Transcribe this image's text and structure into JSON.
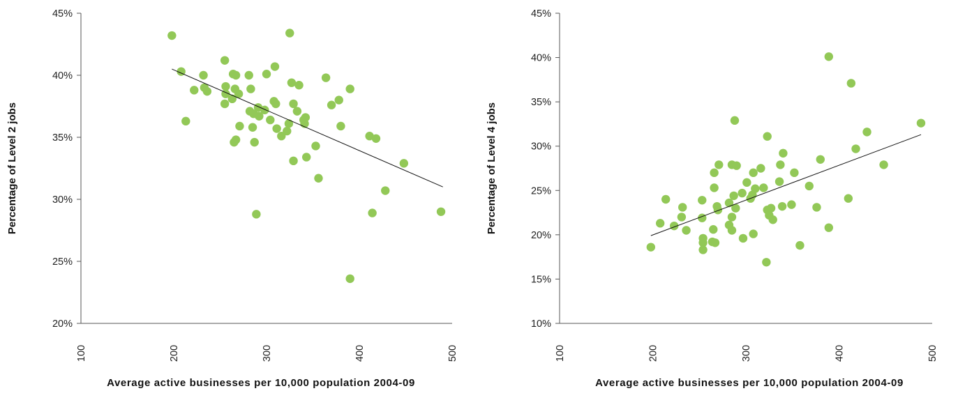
{
  "chart_data": [
    {
      "type": "scatter",
      "title": "",
      "xlabel": "Average active businesses per 10,000 population 2004-09",
      "ylabel": "Percentage of Level 2 jobs",
      "xlim": [
        100,
        500
      ],
      "ylim": [
        20,
        45
      ],
      "x_ticks": [
        "100",
        "200",
        "300",
        "400",
        "500"
      ],
      "y_ticks": [
        "20%",
        "25%",
        "30%",
        "35%",
        "40%",
        "45%"
      ],
      "grid": false,
      "legend": "none",
      "point_color": "#92c857",
      "trendline": {
        "x": [
          198,
          490
        ],
        "y": [
          40.5,
          31.0
        ]
      },
      "series": [
        {
          "points": [
            [
              198,
              43.2
            ],
            [
              208,
              40.3
            ],
            [
              213,
              36.3
            ],
            [
              222,
              38.8
            ],
            [
              232,
              40.0
            ],
            [
              233,
              39.0
            ],
            [
              236,
              38.7
            ],
            [
              255,
              41.2
            ],
            [
              256,
              39.1
            ],
            [
              256,
              38.5
            ],
            [
              255,
              37.7
            ],
            [
              263,
              38.1
            ],
            [
              264,
              40.1
            ],
            [
              267,
              40.0
            ],
            [
              266,
              38.9
            ],
            [
              270,
              38.5
            ],
            [
              267,
              34.8
            ],
            [
              265,
              34.6
            ],
            [
              271,
              35.9
            ],
            [
              281,
              40.0
            ],
            [
              283,
              38.9
            ],
            [
              282,
              37.1
            ],
            [
              286,
              36.9
            ],
            [
              285,
              35.8
            ],
            [
              287,
              34.6
            ],
            [
              291,
              37.4
            ],
            [
              292,
              36.7
            ],
            [
              298,
              37.2
            ],
            [
              300,
              40.1
            ],
            [
              304,
              36.4
            ],
            [
              308,
              37.9
            ],
            [
              310,
              37.7
            ],
            [
              309,
              40.7
            ],
            [
              311,
              35.7
            ],
            [
              316,
              35.1
            ],
            [
              322,
              35.5
            ],
            [
              324,
              36.1
            ],
            [
              325,
              43.4
            ],
            [
              327,
              39.4
            ],
            [
              329,
              37.7
            ],
            [
              329,
              33.1
            ],
            [
              333,
              37.1
            ],
            [
              335,
              39.2
            ],
            [
              340,
              36.4
            ],
            [
              341,
              36.1
            ],
            [
              342,
              36.6
            ],
            [
              343,
              33.4
            ],
            [
              353,
              34.3
            ],
            [
              356,
              31.7
            ],
            [
              364,
              39.8
            ],
            [
              370,
              37.6
            ],
            [
              378,
              38.0
            ],
            [
              380,
              35.9
            ],
            [
              390,
              38.9
            ],
            [
              289,
              28.8
            ],
            [
              411,
              35.1
            ],
            [
              418,
              34.9
            ],
            [
              414,
              28.9
            ],
            [
              428,
              30.7
            ],
            [
              448,
              32.9
            ],
            [
              390,
              23.6
            ],
            [
              488,
              29.0
            ]
          ]
        }
      ]
    },
    {
      "type": "scatter",
      "title": "",
      "xlabel": "Average active businesses per 10,000 population 2004-09",
      "ylabel": "Percentage of Level 4 jobs",
      "xlim": [
        100,
        500
      ],
      "ylim": [
        10,
        45
      ],
      "x_ticks": [
        "100",
        "200",
        "300",
        "400",
        "500"
      ],
      "y_ticks": [
        "10%",
        "15%",
        "20%",
        "25%",
        "30%",
        "35%",
        "40%",
        "45%"
      ],
      "grid": false,
      "legend": "none",
      "point_color": "#92c857",
      "trendline": {
        "x": [
          198,
          488
        ],
        "y": [
          19.9,
          31.3
        ]
      },
      "series": [
        {
          "points": [
            [
              198,
              18.6
            ],
            [
              208,
              21.3
            ],
            [
              214,
              24.0
            ],
            [
              223,
              21.0
            ],
            [
              231,
              22.0
            ],
            [
              232,
              23.1
            ],
            [
              236,
              20.5
            ],
            [
              253,
              23.9
            ],
            [
              253,
              21.9
            ],
            [
              254,
              19.6
            ],
            [
              254,
              19.1
            ],
            [
              254,
              18.3
            ],
            [
              264,
              19.2
            ],
            [
              267,
              19.1
            ],
            [
              265,
              20.6
            ],
            [
              266,
              25.3
            ],
            [
              266,
              27.0
            ],
            [
              269,
              23.2
            ],
            [
              270,
              22.8
            ],
            [
              271,
              27.9
            ],
            [
              282,
              21.1
            ],
            [
              282,
              23.6
            ],
            [
              285,
              20.5
            ],
            [
              285,
              22.0
            ],
            [
              285,
              27.9
            ],
            [
              287,
              24.4
            ],
            [
              289,
              23.0
            ],
            [
              290,
              27.8
            ],
            [
              297,
              19.6
            ],
            [
              296,
              24.7
            ],
            [
              301,
              25.9
            ],
            [
              305,
              24.1
            ],
            [
              307,
              24.5
            ],
            [
              308,
              20.1
            ],
            [
              308,
              27.0
            ],
            [
              310,
              25.2
            ],
            [
              316,
              27.5
            ],
            [
              319,
              25.3
            ],
            [
              323,
              22.8
            ],
            [
              325,
              22.2
            ],
            [
              329,
              21.7
            ],
            [
              327,
              23.0
            ],
            [
              322,
              16.9
            ],
            [
              323,
              31.1
            ],
            [
              336,
              26.0
            ],
            [
              337,
              27.9
            ],
            [
              339,
              23.2
            ],
            [
              340,
              29.2
            ],
            [
              349,
              23.4
            ],
            [
              352,
              27.0
            ],
            [
              358,
              18.8
            ],
            [
              368,
              25.5
            ],
            [
              376,
              23.1
            ],
            [
              380,
              28.5
            ],
            [
              389,
              20.8
            ],
            [
              389,
              40.1
            ],
            [
              410,
              24.1
            ],
            [
              413,
              37.1
            ],
            [
              418,
              29.7
            ],
            [
              430,
              31.6
            ],
            [
              448,
              27.9
            ],
            [
              488,
              32.6
            ],
            [
              288,
              32.9
            ]
          ]
        }
      ]
    }
  ]
}
